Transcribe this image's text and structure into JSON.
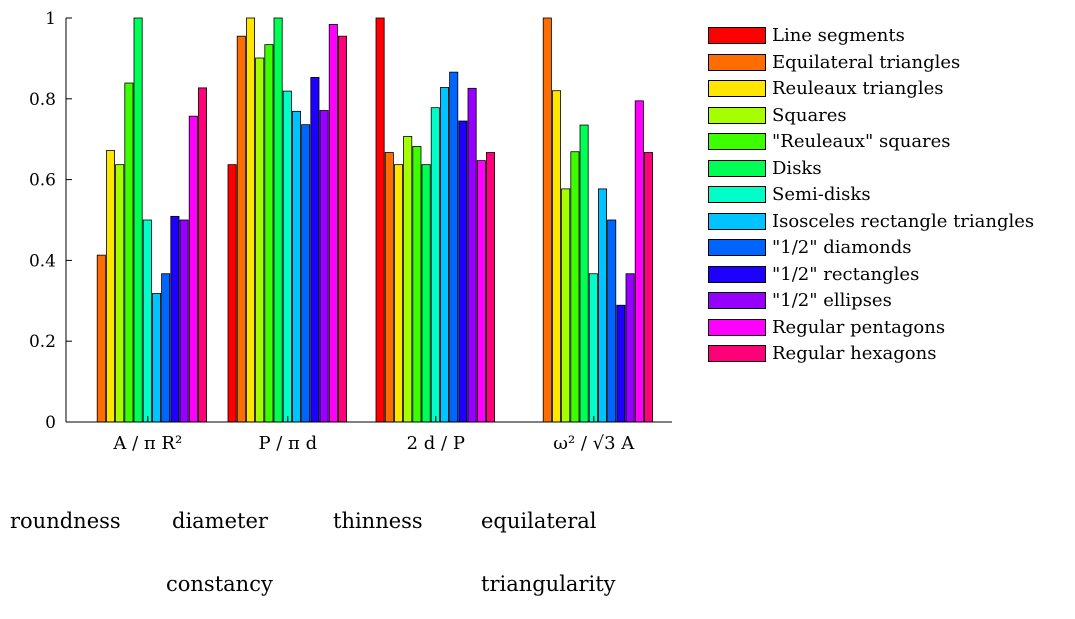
{
  "chart_data": {
    "type": "bar",
    "categories": [
      "A / π R²",
      "P / π d",
      "2 d / P",
      "ω² / √3 A"
    ],
    "category_captions": [
      [
        "roundness"
      ],
      [
        "diameter",
        "constancy"
      ],
      [
        "thinness"
      ],
      [
        "equilateral",
        "triangularity"
      ]
    ],
    "ylim": [
      0,
      1
    ],
    "yticks": [
      "0",
      "0.2",
      "0.4",
      "0.6",
      "0.8",
      "1"
    ],
    "ytick_values": [
      0,
      0.2,
      0.4,
      0.6,
      0.8,
      1
    ],
    "grid": false,
    "legend_position": "right",
    "series": [
      {
        "name": "Line segments",
        "color": "#ff0000",
        "values": [
          null,
          0.637,
          1.0,
          null
        ]
      },
      {
        "name": "Equilateral triangles",
        "color": "#ff6d00",
        "values": [
          0.413,
          0.955,
          0.667,
          1.0
        ]
      },
      {
        "name": "Reuleaux triangles",
        "color": "#ffe600",
        "values": [
          0.672,
          1.0,
          0.637,
          0.82
        ]
      },
      {
        "name": "Squares",
        "color": "#a6ff00",
        "values": [
          0.637,
          0.901,
          0.707,
          0.577
        ]
      },
      {
        "name": "\"Reuleaux\" squares",
        "color": "#3cff00",
        "values": [
          0.839,
          0.934,
          0.682,
          0.669
        ]
      },
      {
        "name": "Disks",
        "color": "#00ff55",
        "values": [
          1.0,
          1.0,
          0.637,
          0.735
        ]
      },
      {
        "name": "Semi-disks",
        "color": "#00ffc8",
        "values": [
          0.5,
          0.819,
          0.778,
          0.367
        ]
      },
      {
        "name": "Isosceles rectangle triangles",
        "color": "#00c3ff",
        "values": [
          0.318,
          0.769,
          0.828,
          0.577
        ]
      },
      {
        "name": "\"1/2\" diamonds",
        "color": "#0064ff",
        "values": [
          0.367,
          0.736,
          0.866,
          0.5
        ]
      },
      {
        "name": "\"1/2\" rectangles",
        "color": "#1e00ff",
        "values": [
          0.509,
          0.853,
          0.745,
          0.289
        ]
      },
      {
        "name": "\"1/2\" ellipses",
        "color": "#9600ff",
        "values": [
          0.5,
          0.771,
          0.826,
          0.367
        ]
      },
      {
        "name": "Regular pentagons",
        "color": "#ff00ff",
        "values": [
          0.757,
          0.984,
          0.647,
          0.795
        ]
      },
      {
        "name": "Regular hexagons",
        "color": "#ff0078",
        "values": [
          0.827,
          0.955,
          0.667,
          0.667
        ]
      }
    ]
  }
}
